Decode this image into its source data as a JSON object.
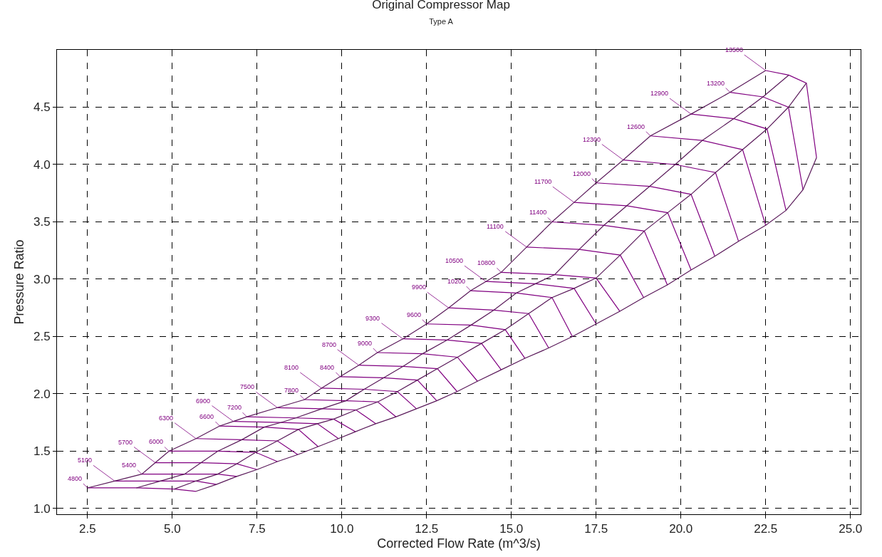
{
  "chart_data": {
    "type": "line",
    "title": "Original Compressor Map",
    "subtitle": "Type A",
    "xlabel": "Corrected Flow Rate (m^3/s)",
    "ylabel": "Pressure Ratio",
    "xlim": [
      1.6,
      25.3
    ],
    "ylim": [
      0.95,
      5.0
    ],
    "xticks": [
      2.5,
      {
        "value": 5,
        "label": "5.0"
      },
      7.5,
      {
        "value": 10,
        "label": "10.0"
      },
      12.5,
      {
        "value": 15,
        "label": "15.0"
      },
      17.5,
      {
        "value": 20,
        "label": "20.0"
      },
      22.5,
      {
        "value": 25,
        "label": "25.0"
      }
    ],
    "yticks": [
      {
        "value": 1,
        "label": "1.0"
      },
      1.5,
      {
        "value": 2,
        "label": "2.0"
      },
      2.5,
      {
        "value": 3,
        "label": "3.0"
      },
      3.5,
      {
        "value": 4,
        "label": "4.0"
      },
      4.5
    ],
    "grid": true,
    "legend": false,
    "marker": "none",
    "line_style": "solid",
    "series": [
      {
        "name": "4800",
        "color": "#800080",
        "x": [
          2.5,
          3.94,
          5.06,
          5.7
        ],
        "values": [
          1.18,
          1.18,
          1.17,
          1.15
        ]
      },
      {
        "name": "5100",
        "color": "#800080",
        "x": [
          3.3,
          4.65,
          5.7,
          6.3
        ],
        "values": [
          1.24,
          1.24,
          1.24,
          1.21
        ]
      },
      {
        "name": "5400",
        "color": "#800080",
        "x": [
          4.1,
          5.36,
          6.34,
          6.9
        ],
        "values": [
          1.3,
          1.3,
          1.3,
          1.28
        ]
      },
      {
        "name": "5700",
        "color": "#800080",
        "x": [
          4.5,
          5.85,
          6.9,
          7.5
        ],
        "values": [
          1.4,
          1.4,
          1.39,
          1.34
        ]
      },
      {
        "name": "6000",
        "color": "#800080",
        "x": [
          4.9,
          6.34,
          7.46,
          8.1
        ],
        "values": [
          1.5,
          1.5,
          1.49,
          1.41
        ]
      },
      {
        "name": "6300",
        "color": "#800080",
        "x": [
          5.7,
          7.05,
          8.1,
          8.7
        ],
        "values": [
          1.61,
          1.6,
          1.59,
          1.47
        ]
      },
      {
        "name": "6600",
        "color": "#800080",
        "x": [
          6.4,
          7.71,
          8.72,
          9.3
        ],
        "values": [
          1.72,
          1.71,
          1.69,
          1.54
        ]
      },
      {
        "name": "6900",
        "color": "#800080",
        "x": [
          6.8,
          8.2,
          9.28,
          9.9
        ],
        "values": [
          1.76,
          1.75,
          1.74,
          1.61
        ]
      },
      {
        "name": "7200",
        "color": "#800080",
        "x": [
          7.2,
          8.64,
          9.76,
          10.4
        ],
        "values": [
          1.8,
          1.79,
          1.78,
          1.67
        ]
      },
      {
        "name": "7500",
        "color": "#800080",
        "x": [
          8.1,
          9.41,
          10.42,
          11.0
        ],
        "values": [
          1.88,
          1.87,
          1.86,
          1.74
        ]
      },
      {
        "name": "7800",
        "color": "#800080",
        "x": [
          8.9,
          10.12,
          11.06,
          11.6
        ],
        "values": [
          1.95,
          1.94,
          1.93,
          1.8
        ]
      },
      {
        "name": "8100",
        "color": "#800080",
        "x": [
          9.4,
          10.66,
          11.64,
          12.2
        ],
        "values": [
          2.05,
          2.04,
          2.02,
          1.87
        ]
      },
      {
        "name": "8400",
        "color": "#800080",
        "x": [
          9.95,
          11.23,
          12.23,
          12.8
        ],
        "values": [
          2.15,
          2.14,
          2.12,
          1.94
        ]
      },
      {
        "name": "8700",
        "color": "#800080",
        "x": [
          10.5,
          11.81,
          12.82,
          13.4
        ],
        "values": [
          2.25,
          2.24,
          2.22,
          2.02
        ]
      },
      {
        "name": "9000",
        "color": "#800080",
        "x": [
          11.05,
          12.38,
          13.41,
          14.0
        ],
        "values": [
          2.36,
          2.35,
          2.32,
          2.11
        ]
      },
      {
        "name": "9300",
        "color": "#800080",
        "x": [
          11.8,
          13.11,
          14.12,
          14.7
        ],
        "values": [
          2.48,
          2.47,
          2.44,
          2.21
        ]
      },
      {
        "name": "9600",
        "color": "#800080",
        "x": [
          12.5,
          13.81,
          14.82,
          15.4
        ],
        "values": [
          2.61,
          2.6,
          2.56,
          2.31
        ]
      },
      {
        "name": "9900",
        "color": "#800080",
        "x": [
          13.15,
          14.48,
          15.51,
          16.1
        ],
        "values": [
          2.75,
          2.73,
          2.7,
          2.4
        ]
      },
      {
        "name": "10200",
        "color": "#800080",
        "x": [
          13.8,
          15.15,
          16.2,
          16.8
        ],
        "values": [
          2.9,
          2.88,
          2.84,
          2.5
        ]
      },
      {
        "name": "10500",
        "color": "#800080",
        "x": [
          14.25,
          15.71,
          16.85,
          17.5
        ],
        "values": [
          2.98,
          2.96,
          2.92,
          2.61
        ]
      },
      {
        "name": "10800",
        "color": "#800080",
        "x": [
          14.7,
          16.28,
          17.5,
          18.2
        ],
        "values": [
          3.06,
          3.04,
          3.01,
          2.72
        ]
      },
      {
        "name": "11100",
        "color": "#800080",
        "x": [
          15.45,
          17.0,
          18.21,
          18.9
        ],
        "values": [
          3.28,
          3.26,
          3.21,
          2.84
        ]
      },
      {
        "name": "11400",
        "color": "#800080",
        "x": [
          16.2,
          17.73,
          18.92,
          19.6
        ],
        "values": [
          3.5,
          3.47,
          3.42,
          2.95
        ]
      },
      {
        "name": "11700",
        "color": "#800080",
        "x": [
          16.85,
          18.4,
          19.61,
          20.3
        ],
        "values": [
          3.67,
          3.64,
          3.58,
          3.08
        ]
      },
      {
        "name": "12000",
        "color": "#800080",
        "x": [
          17.5,
          19.08,
          20.3,
          21.0
        ],
        "values": [
          3.84,
          3.81,
          3.74,
          3.2
        ]
      },
      {
        "name": "12300",
        "color": "#800080",
        "x": [
          18.3,
          19.83,
          21.02,
          21.7
        ],
        "values": [
          4.04,
          4.0,
          3.93,
          3.33
        ]
      },
      {
        "name": "12600",
        "color": "#800080",
        "x": [
          19.1,
          20.63,
          21.82,
          22.5
        ],
        "values": [
          4.25,
          4.21,
          4.13,
          3.47
        ]
      },
      {
        "name": "12900",
        "color": "#800080",
        "x": [
          20.3,
          21.56,
          22.54,
          23.1
        ],
        "values": [
          4.44,
          4.4,
          4.31,
          3.6
        ]
      },
      {
        "name": "13200",
        "color": "#800080",
        "x": [
          21.45,
          22.42,
          23.17,
          23.6
        ],
        "values": [
          4.63,
          4.59,
          4.5,
          3.78
        ]
      },
      {
        "name": "13500",
        "color": "#800080",
        "x": [
          22.5,
          23.18,
          23.7,
          24.0
        ],
        "values": [
          4.82,
          4.78,
          4.71,
          4.06
        ]
      },
      {
        "color": "#5a1a5a",
        "x": [
          2.5,
          3.3,
          4.1,
          4.5,
          4.9,
          5.7,
          6.4,
          6.8,
          7.2,
          8.1,
          8.9,
          9.4,
          9.95,
          10.5,
          11.05,
          11.8,
          12.5,
          13.15,
          13.8,
          14.25,
          14.7,
          15.45,
          16.2,
          16.85,
          17.5,
          18.3,
          19.1,
          20.3,
          21.45,
          22.5
        ],
        "values": [
          1.18,
          1.24,
          1.3,
          1.4,
          1.5,
          1.61,
          1.72,
          1.76,
          1.8,
          1.88,
          1.95,
          2.05,
          2.15,
          2.25,
          2.36,
          2.48,
          2.61,
          2.75,
          2.9,
          2.98,
          3.06,
          3.28,
          3.5,
          3.67,
          3.84,
          4.04,
          4.25,
          4.44,
          4.63,
          4.82
        ]
      },
      {
        "color": "#5a1a5a",
        "x": [
          3.94,
          4.65,
          5.36,
          5.85,
          6.34,
          7.05,
          7.71,
          8.2,
          8.64,
          9.41,
          10.12,
          10.66,
          11.23,
          11.81,
          12.38,
          13.11,
          13.81,
          14.48,
          15.15,
          15.71,
          16.28,
          17.0,
          17.73,
          18.4,
          19.08,
          19.83,
          20.63,
          21.56,
          22.42,
          23.18
        ],
        "values": [
          1.18,
          1.24,
          1.3,
          1.4,
          1.5,
          1.6,
          1.71,
          1.75,
          1.79,
          1.87,
          1.94,
          2.04,
          2.14,
          2.24,
          2.35,
          2.47,
          2.6,
          2.73,
          2.88,
          2.96,
          3.04,
          3.26,
          3.47,
          3.64,
          3.81,
          4.0,
          4.21,
          4.4,
          4.59,
          4.78
        ]
      },
      {
        "color": "#5a1a5a",
        "x": [
          5.06,
          5.7,
          6.34,
          6.9,
          7.46,
          8.1,
          8.72,
          9.28,
          9.76,
          10.42,
          11.06,
          11.64,
          12.23,
          12.82,
          13.41,
          14.12,
          14.82,
          15.51,
          16.2,
          16.85,
          17.5,
          18.21,
          18.92,
          19.61,
          20.3,
          21.02,
          21.82,
          22.54,
          23.17,
          23.7
        ],
        "values": [
          1.17,
          1.24,
          1.3,
          1.39,
          1.49,
          1.59,
          1.69,
          1.74,
          1.78,
          1.86,
          1.93,
          2.02,
          2.12,
          2.22,
          2.32,
          2.44,
          2.56,
          2.7,
          2.84,
          2.92,
          3.01,
          3.21,
          3.42,
          3.58,
          3.74,
          3.93,
          4.13,
          4.31,
          4.5,
          4.71
        ]
      },
      {
        "color": "#5a1a5a",
        "x": [
          5.7,
          6.3,
          6.9,
          7.5,
          8.1,
          8.7,
          9.3,
          9.9,
          10.4,
          11.0,
          11.6,
          12.2,
          12.8,
          13.4,
          14.0,
          14.7,
          15.4,
          16.1,
          16.8,
          17.5,
          18.2,
          18.9,
          19.6,
          20.3,
          21.0,
          21.7,
          22.5,
          23.1,
          23.6,
          24.0
        ],
        "values": [
          1.15,
          1.21,
          1.28,
          1.34,
          1.41,
          1.47,
          1.54,
          1.61,
          1.67,
          1.74,
          1.8,
          1.87,
          1.94,
          2.02,
          2.11,
          2.21,
          2.31,
          2.4,
          2.5,
          2.61,
          2.72,
          2.84,
          2.95,
          3.08,
          3.2,
          3.33,
          3.47,
          3.6,
          3.78,
          4.06
        ]
      }
    ]
  }
}
